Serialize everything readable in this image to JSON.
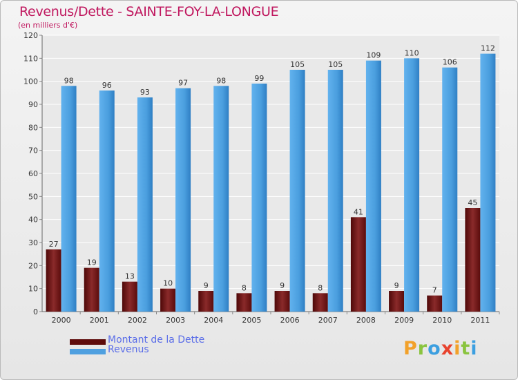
{
  "header": {
    "title": "Revenus/Dette - SAINTE-FOY-LA-LONGUE",
    "subtitle": "(en milliers d'€)"
  },
  "colors": {
    "debt": "#7a1616",
    "revenue": "#4fa0e0",
    "title": "#c0185f",
    "legend_text": "#5b6ee8"
  },
  "chart_data": {
    "type": "bar",
    "categories": [
      "2000",
      "2001",
      "2002",
      "2003",
      "2004",
      "2005",
      "2006",
      "2007",
      "2008",
      "2009",
      "2010",
      "2011"
    ],
    "series": [
      {
        "name": "Montant de la Dette",
        "values": [
          27,
          19,
          13,
          10,
          9,
          8,
          9,
          8,
          41,
          9,
          7,
          45
        ]
      },
      {
        "name": "Revenus",
        "values": [
          98,
          96,
          93,
          97,
          98,
          99,
          105,
          105,
          109,
          110,
          106,
          112
        ]
      }
    ],
    "title": "Revenus/Dette - SAINTE-FOY-LA-LONGUE",
    "ylabel": "(en milliers d'€)",
    "ylim": [
      0,
      120
    ],
    "yticks": [
      0,
      10,
      20,
      30,
      40,
      50,
      60,
      70,
      80,
      90,
      100,
      110,
      120
    ],
    "grid": true,
    "legend": "bottom-left"
  },
  "legend": {
    "items": [
      {
        "label": "Montant de la Dette"
      },
      {
        "label": "Revenus"
      }
    ]
  },
  "logo": {
    "letters": [
      "P",
      "r",
      "o",
      "x",
      "i",
      "t",
      "i"
    ],
    "colors": [
      "#f2a12a",
      "#8ac43f",
      "#3c9fe0",
      "#e8432e",
      "#f2a12a",
      "#8ac43f",
      "#3c9fe0"
    ]
  }
}
